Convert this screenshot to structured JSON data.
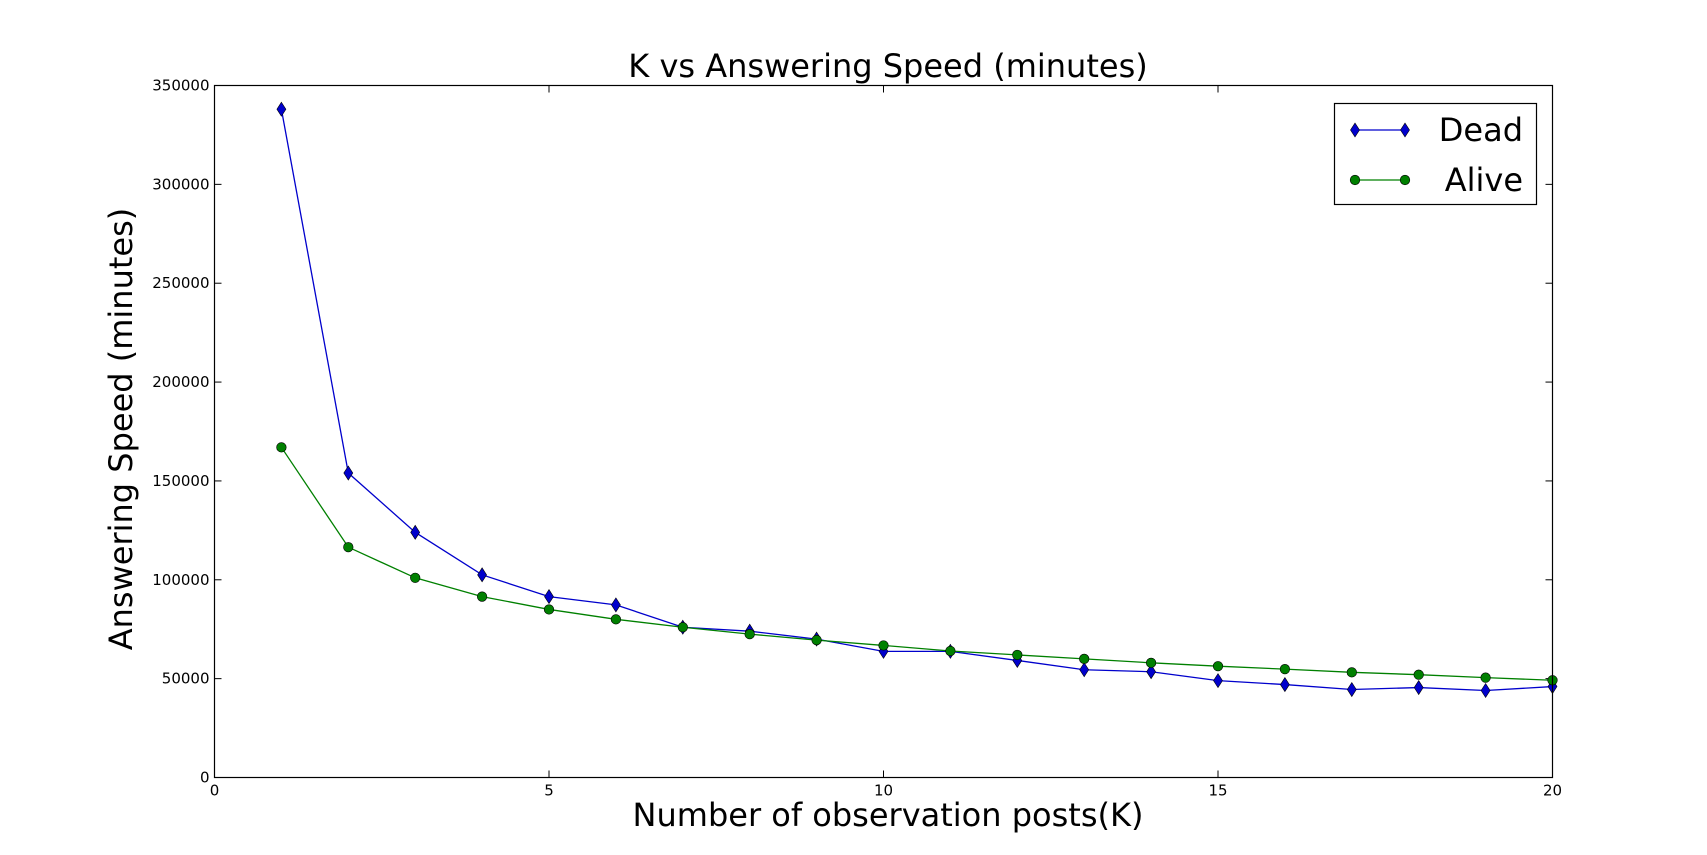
{
  "chart_data": {
    "type": "line",
    "title": "K vs Answering Speed (minutes)",
    "xlabel": "Number of observation posts(K)",
    "ylabel": "Answering Speed (minutes)",
    "xlim": [
      0,
      20
    ],
    "ylim": [
      0,
      350000
    ],
    "xticks": [
      0,
      5,
      10,
      15,
      20
    ],
    "yticks": [
      0,
      50000,
      100000,
      150000,
      200000,
      250000,
      300000,
      350000
    ],
    "grid": false,
    "legend_position": "top-right",
    "x": [
      1,
      2,
      3,
      4,
      5,
      6,
      7,
      8,
      9,
      10,
      11,
      12,
      13,
      14,
      15,
      16,
      17,
      18,
      19,
      20
    ],
    "series": [
      {
        "name": "Dead",
        "color": "#0000cc",
        "marker": "diamond",
        "values": [
          338000,
          154000,
          124000,
          102500,
          91500,
          87300,
          76000,
          74000,
          70000,
          63800,
          63800,
          59200,
          54500,
          53500,
          49000,
          47000,
          44500,
          45500,
          44000,
          46000
        ]
      },
      {
        "name": "Alive",
        "color": "#008000",
        "marker": "circle",
        "values": [
          167000,
          116500,
          101000,
          91500,
          85000,
          80000,
          76000,
          72500,
          69500,
          66800,
          64000,
          62000,
          60000,
          58000,
          56300,
          54800,
          53200,
          52000,
          50500,
          49200
        ]
      }
    ]
  }
}
